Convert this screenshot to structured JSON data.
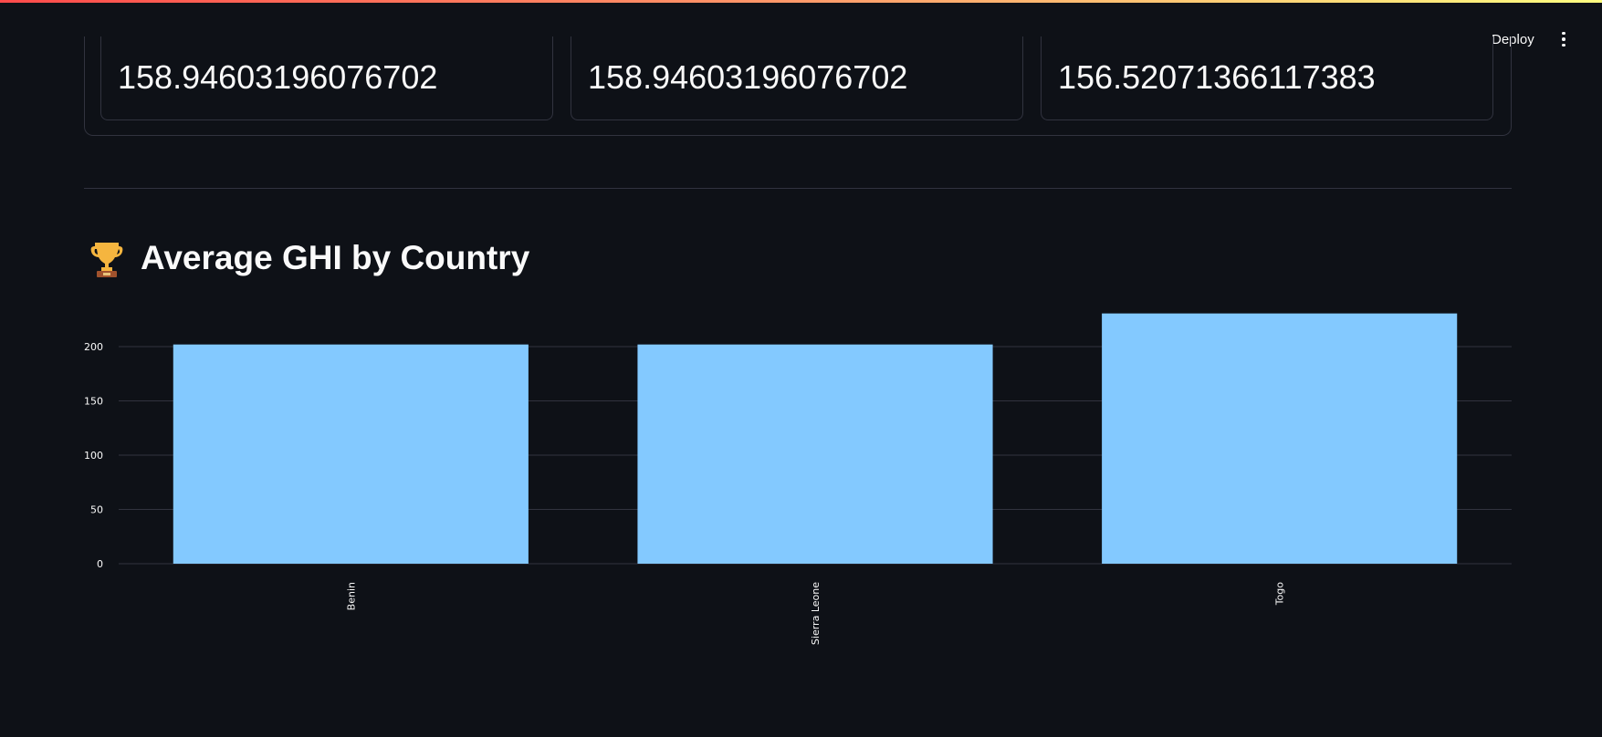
{
  "header": {
    "deploy_label": "Deploy",
    "menu_icon": "vertical-ellipsis-icon"
  },
  "metrics": [
    {
      "value": "158.94603196076702"
    },
    {
      "value": "158.94603196076702"
    },
    {
      "value": "156.52071366117383"
    }
  ],
  "section": {
    "icon": "trophy-icon",
    "title": "Average GHI by Country"
  },
  "colors": {
    "background": "#0e1117",
    "bar": "#83c9ff",
    "grid": "#31333f",
    "text": "#fafafa"
  },
  "chart_data": {
    "type": "bar",
    "categories": [
      "Benin",
      "Sierra Leone",
      "Togo"
    ],
    "values": [
      201.96,
      201.96,
      230.56
    ],
    "xlabel": "",
    "ylabel": "",
    "ylim": [
      0,
      240
    ],
    "yticks": [
      0,
      50,
      100,
      150,
      200
    ],
    "grid": true
  }
}
